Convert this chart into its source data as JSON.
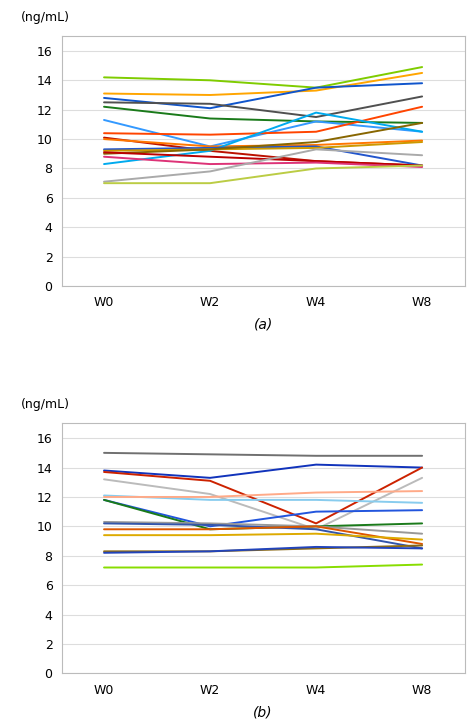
{
  "xlabel_units": "(ng/mL)",
  "x_labels": [
    "W0",
    "W2",
    "W4",
    "W8"
  ],
  "x_ticks": [
    0,
    1,
    2,
    3
  ],
  "ylim": [
    0,
    17
  ],
  "yticks": [
    0,
    2,
    4,
    6,
    8,
    10,
    12,
    14,
    16
  ],
  "chart_a_label": "(a)",
  "chart_b_label": "(b)",
  "chart_a_lines": [
    {
      "color": "#7FCC00",
      "values": [
        14.2,
        14.0,
        13.5,
        14.9
      ]
    },
    {
      "color": "#FFA500",
      "values": [
        13.1,
        13.0,
        13.3,
        14.5
      ]
    },
    {
      "color": "#1055CC",
      "values": [
        12.8,
        12.1,
        13.5,
        13.8
      ]
    },
    {
      "color": "#505050",
      "values": [
        12.5,
        12.4,
        11.5,
        12.9
      ]
    },
    {
      "color": "#1A7A1A",
      "values": [
        12.2,
        11.4,
        11.2,
        11.1
      ]
    },
    {
      "color": "#3399FF",
      "values": [
        11.3,
        9.5,
        11.2,
        10.5
      ]
    },
    {
      "color": "#FF4400",
      "values": [
        10.4,
        10.3,
        10.5,
        12.2
      ]
    },
    {
      "color": "#BB1100",
      "values": [
        10.1,
        9.2,
        8.5,
        8.2
      ]
    },
    {
      "color": "#FF7700",
      "values": [
        10.0,
        9.5,
        9.6,
        9.9
      ]
    },
    {
      "color": "#00AAEE",
      "values": [
        8.3,
        9.2,
        11.8,
        10.5
      ]
    },
    {
      "color": "#2255CC",
      "values": [
        9.3,
        9.4,
        9.5,
        8.2
      ]
    },
    {
      "color": "#CC9900",
      "values": [
        9.2,
        9.3,
        9.4,
        9.8
      ]
    },
    {
      "color": "#886600",
      "values": [
        9.0,
        9.3,
        9.8,
        11.1
      ]
    },
    {
      "color": "#BB0000",
      "values": [
        9.1,
        8.8,
        8.5,
        8.2
      ]
    },
    {
      "color": "#DD3377",
      "values": [
        8.8,
        8.3,
        8.4,
        8.1
      ]
    },
    {
      "color": "#AAAAAA",
      "values": [
        7.1,
        7.8,
        9.3,
        8.9
      ]
    },
    {
      "color": "#BBCC44",
      "values": [
        7.0,
        7.0,
        8.0,
        8.2
      ]
    }
  ],
  "chart_b_lines": [
    {
      "color": "#707070",
      "values": [
        15.0,
        14.9,
        14.8,
        14.8
      ]
    },
    {
      "color": "#1133BB",
      "values": [
        13.8,
        13.3,
        14.2,
        14.0
      ]
    },
    {
      "color": "#CC2200",
      "values": [
        13.7,
        13.1,
        10.2,
        14.0
      ]
    },
    {
      "color": "#BBBBBB",
      "values": [
        13.2,
        12.2,
        9.8,
        13.3
      ]
    },
    {
      "color": "#88CCEE",
      "values": [
        12.1,
        11.8,
        11.8,
        11.6
      ]
    },
    {
      "color": "#FFAA88",
      "values": [
        12.0,
        12.0,
        12.3,
        12.4
      ]
    },
    {
      "color": "#2255DD",
      "values": [
        11.8,
        10.0,
        11.0,
        11.1
      ]
    },
    {
      "color": "#1A7A1A",
      "values": [
        11.8,
        9.8,
        10.0,
        10.2
      ]
    },
    {
      "color": "#999999",
      "values": [
        10.3,
        10.2,
        10.0,
        9.5
      ]
    },
    {
      "color": "#3355AA",
      "values": [
        10.2,
        10.1,
        9.8,
        8.5
      ]
    },
    {
      "color": "#DD5500",
      "values": [
        9.8,
        9.8,
        10.0,
        8.8
      ]
    },
    {
      "color": "#DDAA00",
      "values": [
        9.4,
        9.4,
        9.5,
        9.1
      ]
    },
    {
      "color": "#8B6914",
      "values": [
        8.3,
        8.3,
        8.5,
        8.7
      ]
    },
    {
      "color": "#2244BB",
      "values": [
        8.2,
        8.3,
        8.6,
        8.5
      ]
    },
    {
      "color": "#88DD00",
      "values": [
        7.2,
        7.2,
        7.2,
        7.4
      ]
    }
  ]
}
